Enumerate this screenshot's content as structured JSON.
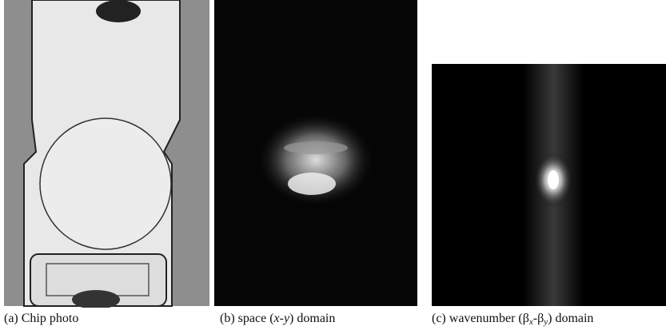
{
  "panels": [
    {
      "caption": [
        {
          "text": "(a) Chip photo",
          "style": "normal"
        }
      ]
    },
    {
      "caption": [
        {
          "text": "(b) space (",
          "style": "normal"
        },
        {
          "text": "x-y",
          "style": "italic"
        },
        {
          "text": ") domain",
          "style": "normal"
        }
      ]
    },
    {
      "caption": [
        {
          "text": "(c) wavenumber (β",
          "style": "normal"
        },
        {
          "text": "x",
          "style": "sub"
        },
        {
          "text": "-β",
          "style": "normal"
        },
        {
          "text": "y",
          "style": "sub"
        },
        {
          "text": ") domain",
          "style": "normal"
        }
      ]
    }
  ]
}
